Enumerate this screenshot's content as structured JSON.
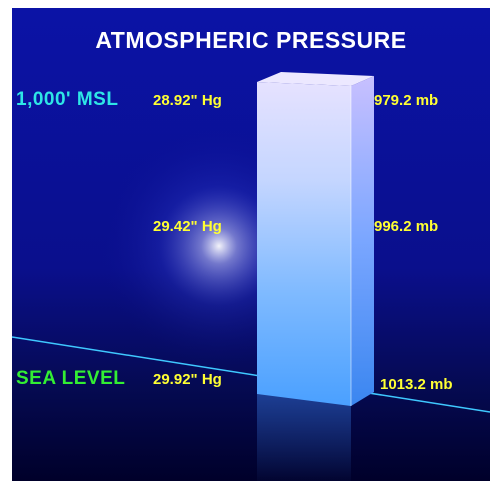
{
  "title": "ATMOSPHERIC PRESSURE",
  "colors": {
    "title": "#ffffff",
    "altitude_msl": "#2ee6e6",
    "altitude_sea_level": "#33ee33",
    "pressure_values": "#ffff33",
    "background_top": "#0a0f8c",
    "background_bottom": "#00002e",
    "column": "#8fd0ff",
    "sea_line": "#3fc8ff"
  },
  "altitude_labels": {
    "msl": "1,000'  MSL",
    "sea_level": "SEA LEVEL"
  },
  "pressure_levels": [
    {
      "hg": "28.92\"  Hg",
      "mb": "979.2  mb"
    },
    {
      "hg": "29.42\"  Hg",
      "mb": "996.2  mb"
    },
    {
      "hg": "29.92\"  Hg",
      "mb": "1013.2  mb"
    }
  ]
}
